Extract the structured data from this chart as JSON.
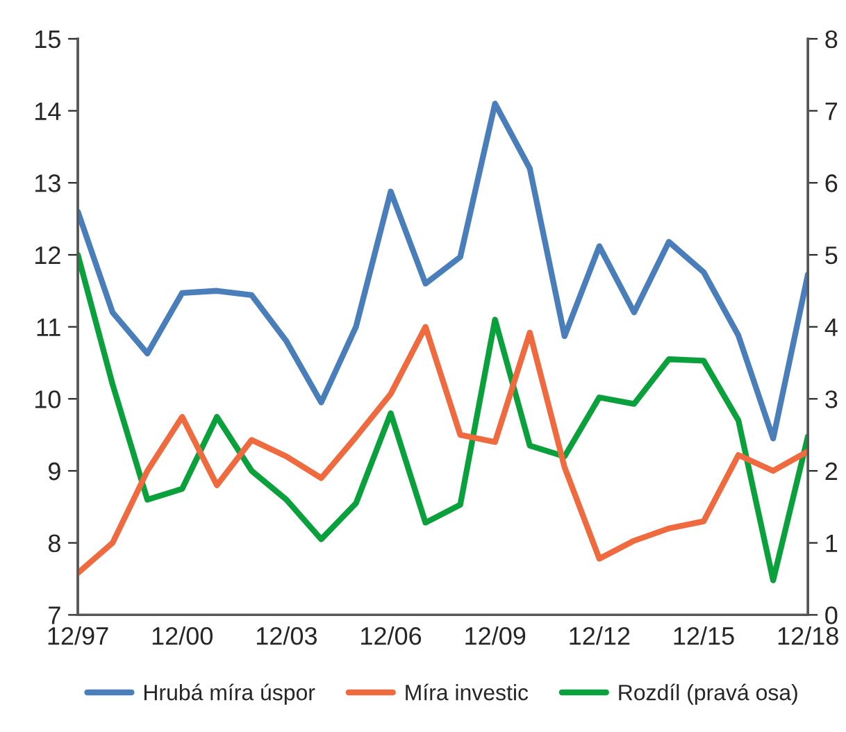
{
  "chart_data": {
    "type": "line",
    "categories": [
      "12/97",
      null,
      null,
      "12/00",
      null,
      null,
      "12/03",
      null,
      null,
      "12/06",
      null,
      null,
      "12/09",
      null,
      null,
      "12/12",
      null,
      null,
      "12/15",
      null,
      null,
      "12/18"
    ],
    "series": [
      {
        "name": "Hrubá míra úspor",
        "color": "#4a7ebb",
        "values": [
          12.6,
          11.2,
          10.63,
          11.47,
          11.5,
          11.44,
          10.8,
          9.95,
          11.0,
          12.88,
          11.6,
          11.97,
          14.1,
          13.2,
          10.87,
          12.12,
          11.2,
          12.18,
          11.76,
          10.88,
          9.45,
          11.73
        ]
      },
      {
        "name": "Míra investic",
        "color": "#ef6a3f",
        "values": [
          7.58,
          8.0,
          9.0,
          9.75,
          8.8,
          9.43,
          9.2,
          8.9,
          9.47,
          10.07,
          11.0,
          9.5,
          9.4,
          10.92,
          9.05,
          7.78,
          8.03,
          8.2,
          8.3,
          9.22,
          9.0,
          9.27
        ]
      },
      {
        "name": "Rozdíl (pravá osa)",
        "color": "#0aa03c",
        "axis": "y2",
        "values": [
          5.0,
          3.2,
          1.6,
          1.75,
          2.75,
          2.0,
          1.6,
          1.05,
          1.55,
          2.8,
          1.28,
          1.53,
          4.1,
          2.35,
          2.2,
          3.02,
          2.93,
          3.55,
          3.53,
          2.7,
          0.48,
          2.48
        ]
      }
    ],
    "ylim": [
      7,
      15
    ],
    "yticks": [
      7,
      8,
      9,
      10,
      11,
      12,
      13,
      14,
      15
    ],
    "y2lim": [
      0,
      8
    ],
    "y2ticks": [
      0,
      1,
      2,
      3,
      4,
      5,
      6,
      7,
      8
    ],
    "grid": false,
    "legend": "bottom",
    "marker": "none",
    "line_style": "solid"
  }
}
